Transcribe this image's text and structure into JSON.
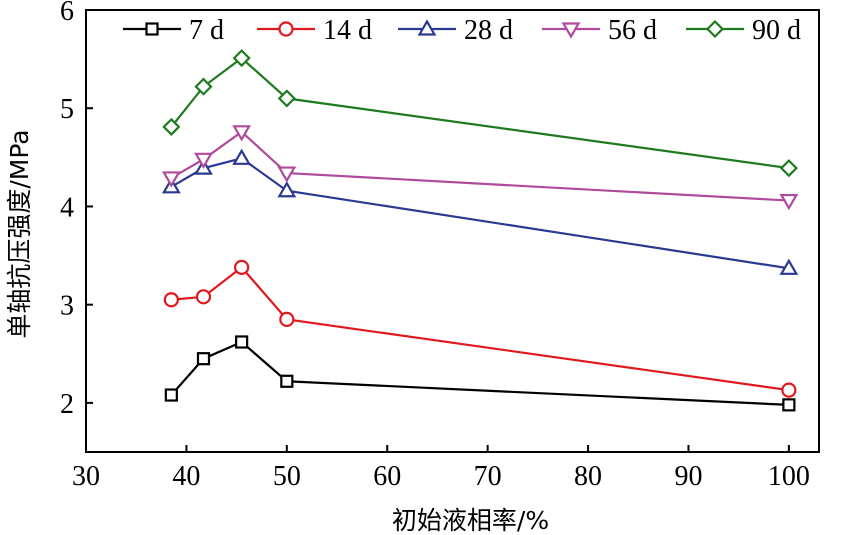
{
  "chart_data": {
    "type": "line",
    "title": "",
    "xlabel": "初始液相率/%",
    "ylabel": "单轴抗压强度/MPa",
    "xlim": [
      30,
      103
    ],
    "ylim": [
      1.5,
      6
    ],
    "xticks": [
      30,
      40,
      50,
      60,
      70,
      80,
      90,
      100
    ],
    "yticks": [
      2,
      3,
      4,
      5,
      6
    ],
    "grid": false,
    "legend_position": "top",
    "x": [
      38.5,
      41.7,
      45.5,
      50,
      100
    ],
    "series": [
      {
        "name": "7 d",
        "marker": "square",
        "color": "#000000",
        "values": [
          2.08,
          2.45,
          2.62,
          2.22,
          1.98
        ]
      },
      {
        "name": "14 d",
        "marker": "circle",
        "color": "#e0191e",
        "values": [
          3.05,
          3.08,
          3.38,
          2.85,
          2.13
        ]
      },
      {
        "name": "28 d",
        "marker": "triangle-up",
        "color": "#2b3990",
        "values": [
          4.2,
          4.39,
          4.49,
          4.16,
          3.37
        ]
      },
      {
        "name": "56 d",
        "marker": "triangle-down",
        "color": "#b04a9d",
        "values": [
          4.29,
          4.48,
          4.76,
          4.34,
          4.06
        ]
      },
      {
        "name": "90 d",
        "marker": "diamond",
        "color": "#1e7a1e",
        "values": [
          4.81,
          5.22,
          5.51,
          5.1,
          4.39
        ]
      }
    ]
  }
}
